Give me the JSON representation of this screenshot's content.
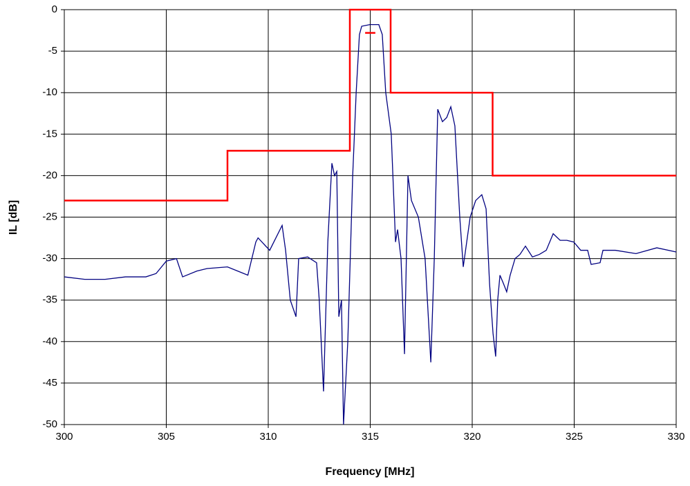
{
  "chart_data": {
    "type": "line",
    "xlabel": "Frequency [MHz]",
    "ylabel": "IL [dB]",
    "xlim": [
      300,
      330
    ],
    "xticks": [
      300,
      305,
      310,
      315,
      320,
      325,
      330
    ],
    "ylim": [
      -50,
      0
    ],
    "yticks": [
      -50,
      -45,
      -40,
      -35,
      -30,
      -25,
      -20,
      -15,
      -10,
      -5,
      0
    ],
    "grid": true,
    "series": [
      {
        "color": "#000080",
        "x": [
          300,
          301,
          302,
          303,
          304,
          304.5,
          305,
          305.5,
          305.8,
          306.5,
          307,
          308,
          308.5,
          309,
          309.39,
          309.5,
          310.07,
          310.68,
          310.85,
          311.08,
          311.36,
          311.49,
          311.93,
          312.37,
          312.5,
          312.71,
          312.92,
          313.12,
          313.25,
          313.36,
          313.46,
          313.59,
          313.69,
          313.9,
          314.14,
          314.31,
          314.47,
          314.58,
          314.98,
          315.42,
          315.59,
          315.76,
          316.03,
          316.24,
          316.34,
          316.51,
          316.68,
          316.85,
          317.02,
          317.36,
          317.69,
          317.97,
          318.14,
          318.31,
          318.54,
          318.75,
          318.95,
          319.15,
          319.39,
          319.56,
          319.73,
          319.9,
          320.17,
          320.47,
          320.68,
          320.85,
          321.02,
          321.15,
          321.25,
          321.36,
          321.53,
          321.69,
          321.86,
          322.1,
          322.34,
          322.61,
          322.95,
          323.29,
          323.63,
          323.97,
          324.31,
          324.64,
          324.98,
          325.32,
          325.66,
          325.83,
          326.27,
          326.41,
          327.02,
          328.03,
          329.05,
          330
        ],
        "values": [
          -32.2,
          -32.5,
          -32.5,
          -32.2,
          -32.2,
          -31.8,
          -30.3,
          -30,
          -32.2,
          -31.5,
          -31.2,
          -31,
          -31.5,
          -32,
          -28,
          -27.5,
          -29,
          -26,
          -29,
          -35,
          -37,
          -30,
          -29.8,
          -30.5,
          -35,
          -46,
          -28,
          -18.5,
          -20,
          -19.5,
          -37,
          -35,
          -50,
          -40,
          -20,
          -10,
          -3,
          -2,
          -1.8,
          -1.8,
          -3,
          -10,
          -15,
          -28,
          -26.5,
          -30,
          -41.5,
          -20,
          -23,
          -25,
          -30,
          -42.5,
          -30,
          -12,
          -13.5,
          -13,
          -11.7,
          -14,
          -25,
          -31,
          -28,
          -25,
          -23,
          -22.3,
          -24,
          -33,
          -39,
          -41.8,
          -35,
          -32,
          -33,
          -34,
          -32,
          -30,
          -29.5,
          -28.5,
          -29.8,
          -29.5,
          -29,
          -27,
          -27.8,
          -27.8,
          -28,
          -29,
          -29,
          -30.7,
          -30.5,
          -29,
          -29,
          -29.4,
          -28.7,
          -29.2
        ]
      },
      {
        "color": "#ff0000",
        "x": [
          300,
          308,
          308,
          314,
          314,
          316,
          316,
          321,
          321,
          330,
          null,
          314.75,
          315.25
        ],
        "values": [
          -23,
          -23,
          -17,
          -17,
          0,
          0,
          -10,
          -10,
          -20,
          -20,
          null,
          -2.8,
          -2.8
        ]
      }
    ]
  }
}
